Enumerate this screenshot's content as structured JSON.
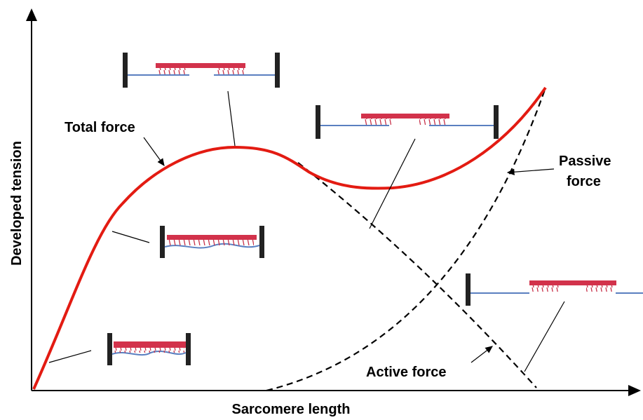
{
  "axes": {
    "y_label": "Developed tension",
    "x_label": "Sarcomere length"
  },
  "labels": {
    "total_force": "Total force",
    "passive_force": [
      "Passive",
      "force"
    ],
    "active_force": "Active force"
  }
}
